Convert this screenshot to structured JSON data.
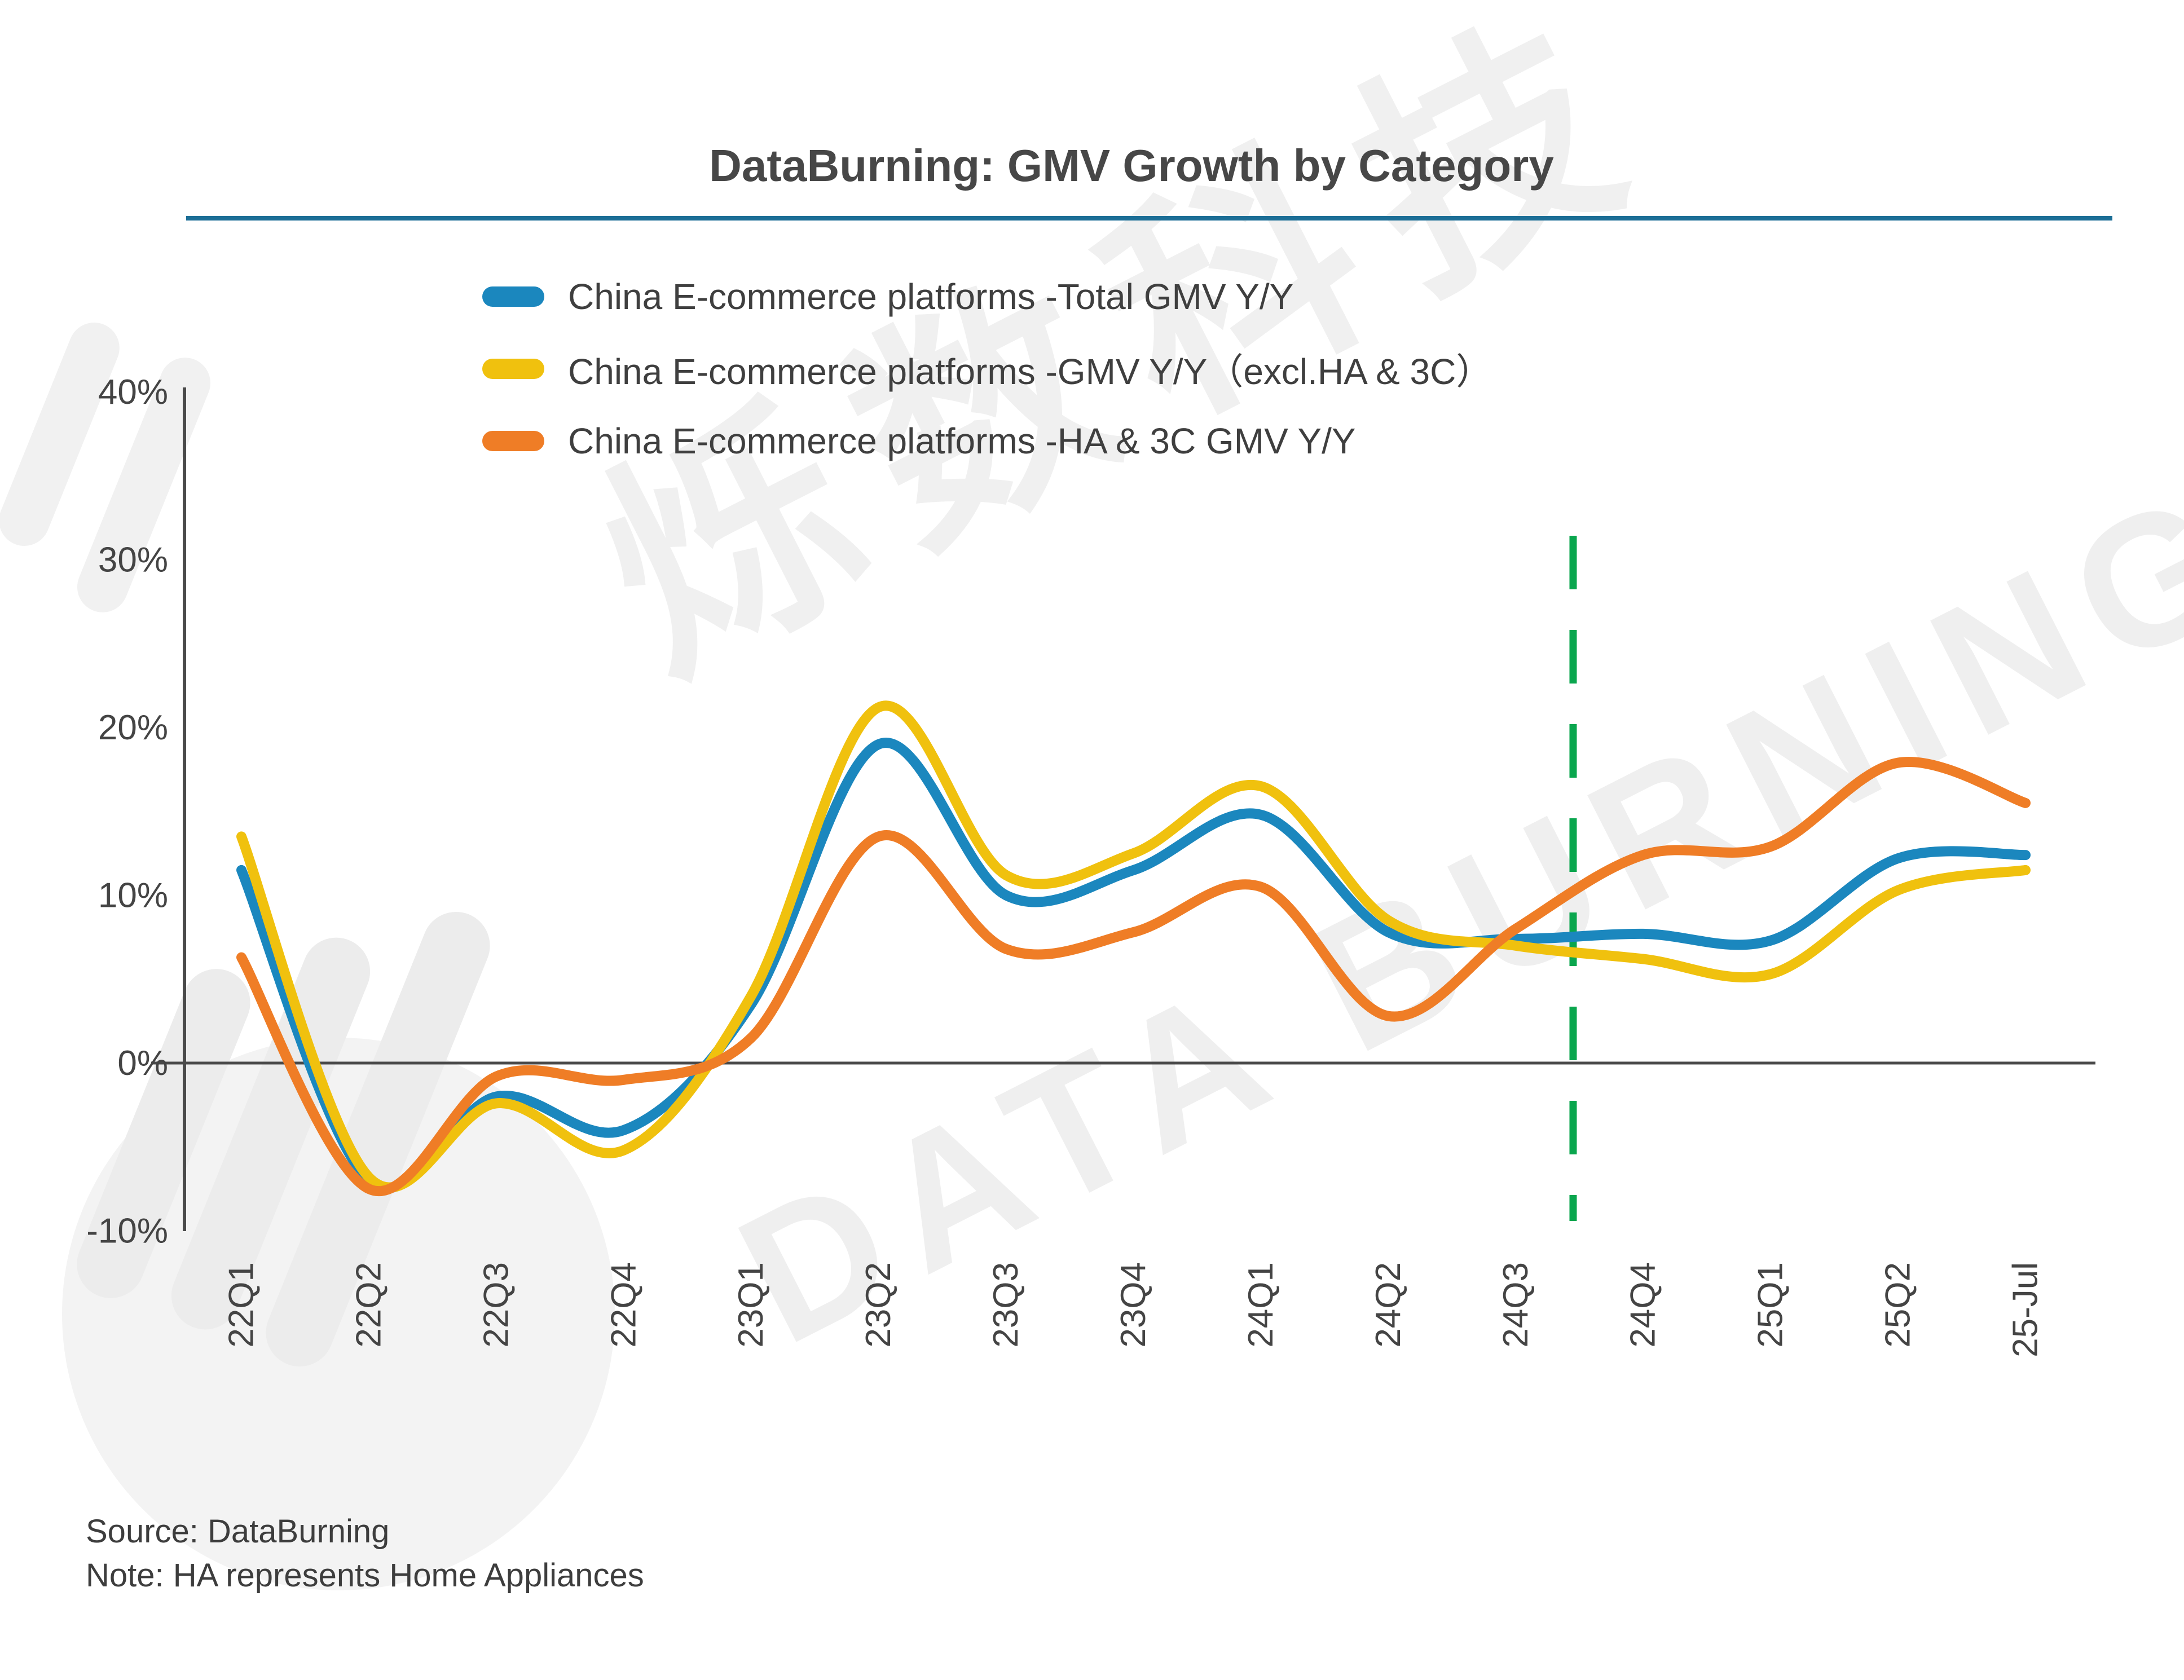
{
  "title": "DataBurning: GMV Growth by Category",
  "footer": {
    "source": "Source: DataBurning",
    "note": "Note: HA represents Home Appliances"
  },
  "watermark": {
    "cn": "烁数科技",
    "en": "DATA BURNING"
  },
  "colors": {
    "title_rule": "#1C6E96",
    "axis": "#4A4A4A",
    "tick_text": "#444444",
    "forecast_divider": "#0AA64E"
  },
  "chart_data": {
    "type": "line",
    "title": "DataBurning: GMV Growth by Category",
    "xlabel": "",
    "ylabel": "",
    "ylim": [
      -10,
      40
    ],
    "grid": false,
    "legend_position": "top",
    "y_ticks": [
      "40%",
      "30%",
      "20%",
      "10%",
      "0%",
      "-10%"
    ],
    "y_tick_values": [
      40,
      30,
      20,
      10,
      0,
      -10
    ],
    "categories": [
      "22Q1",
      "22Q2",
      "22Q3",
      "22Q4",
      "23Q1",
      "23Q2",
      "23Q3",
      "23Q4",
      "24Q1",
      "24Q2",
      "24Q3",
      "24Q4",
      "25Q1",
      "25Q2",
      "25-Jul"
    ],
    "series": [
      {
        "name": "China E-commerce platforms -Total GMV Y/Y",
        "color": "#1B87BE",
        "values": [
          11.5,
          -7.0,
          -2.0,
          -4.0,
          3.5,
          19.0,
          10.0,
          11.5,
          14.8,
          7.8,
          7.4,
          7.7,
          7.3,
          12.2,
          12.4
        ]
      },
      {
        "name": "China E-commerce platforms -GMV Y/Y（excl.HA & 3C）",
        "color": "#F0C10E",
        "values": [
          13.5,
          -6.8,
          -2.4,
          -5.2,
          4.0,
          21.2,
          11.2,
          12.5,
          16.5,
          8.5,
          7.0,
          6.2,
          5.3,
          10.3,
          11.5
        ]
      },
      {
        "name": "China E-commerce platforms -HA & 3C GMV Y/Y",
        "color": "#EF7D26",
        "values": [
          6.3,
          -7.5,
          -0.8,
          -1.0,
          1.5,
          13.5,
          6.8,
          7.8,
          10.5,
          2.8,
          8.0,
          12.4,
          12.9,
          17.9,
          15.5
        ]
      }
    ],
    "annotations": {
      "forecast_divider": {
        "x_index": 10.45,
        "style": "dashed",
        "color": "#0AA64E"
      }
    }
  }
}
